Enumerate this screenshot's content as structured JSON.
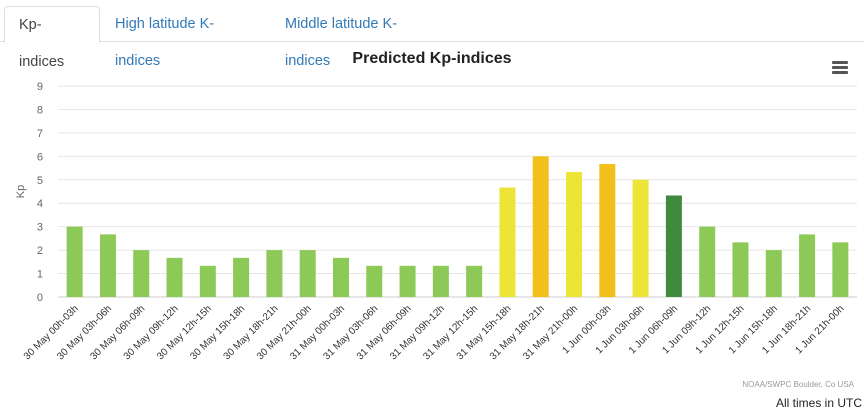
{
  "tabs": [
    {
      "label": "Kp-indices",
      "active": true
    },
    {
      "label": "High latitude K-indices",
      "active": false
    },
    {
      "label": "Middle latitude K-indices",
      "active": false
    }
  ],
  "menu_icon": "hamburger-menu-icon",
  "credits": "NOAA/SWPC Boulder, Co USA",
  "times_note": "All times in UTC",
  "colors": {
    "quiet": "#8cc956",
    "kp5": "#ede536",
    "kp6": "#f3bf1b",
    "kp4": "#3f8a3f"
  },
  "chart_data": {
    "type": "bar",
    "title": "Predicted Kp-indices",
    "ylabel": "Kp",
    "xlabel": "",
    "ylim": [
      0,
      9
    ],
    "yticks": [
      0,
      1,
      2,
      3,
      4,
      5,
      6,
      7,
      8,
      9
    ],
    "grid": true,
    "legend": false,
    "categories": [
      "30 May 00h-03h",
      "30 May 03h-06h",
      "30 May 06h-09h",
      "30 May 09h-12h",
      "30 May 12h-15h",
      "30 May 15h-18h",
      "30 May 18h-21h",
      "30 May 21h-00h",
      "31 May 00h-03h",
      "31 May 03h-06h",
      "31 May 06h-09h",
      "31 May 09h-12h",
      "31 May 12h-15h",
      "31 May 15h-18h",
      "31 May 18h-21h",
      "31 May 21h-00h",
      "1 Jun 00h-03h",
      "1 Jun 03h-06h",
      "1 Jun 06h-09h",
      "1 Jun 09h-12h",
      "1 Jun 12h-15h",
      "1 Jun 15h-18h",
      "1 Jun 18h-21h",
      "1 Jun 21h-00h"
    ],
    "values": [
      3.0,
      2.67,
      2.0,
      1.67,
      1.33,
      1.67,
      2.0,
      2.0,
      1.67,
      1.33,
      1.33,
      1.33,
      1.33,
      4.67,
      6.0,
      5.33,
      5.67,
      5.0,
      4.33,
      3.0,
      2.33,
      2.0,
      2.67,
      2.33
    ],
    "bar_colors": [
      "#8cc956",
      "#8cc956",
      "#8cc956",
      "#8cc956",
      "#8cc956",
      "#8cc956",
      "#8cc956",
      "#8cc956",
      "#8cc956",
      "#8cc956",
      "#8cc956",
      "#8cc956",
      "#8cc956",
      "#ede536",
      "#f3bf1b",
      "#ede536",
      "#f3bf1b",
      "#ede536",
      "#3f8a3f",
      "#8cc956",
      "#8cc956",
      "#8cc956",
      "#8cc956",
      "#8cc956"
    ]
  }
}
